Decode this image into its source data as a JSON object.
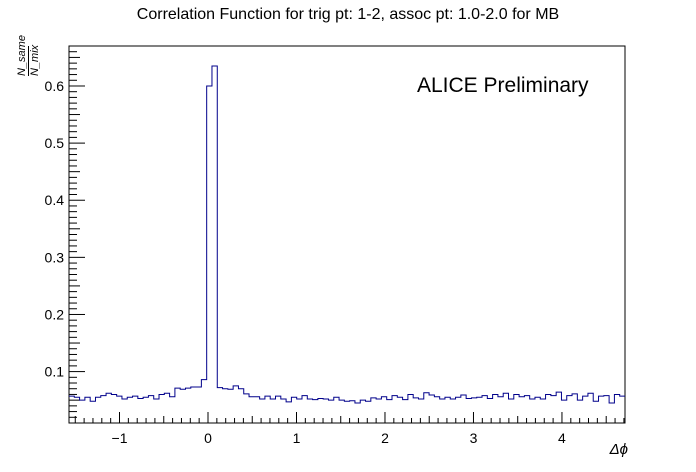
{
  "chart_data": {
    "type": "step-histogram",
    "title": "Correlation Function for trig pt: 1-2, assoc pt: 1.0-2.0 for MB",
    "annotation": "ALICE Preliminary",
    "xlabel": "Δϕ",
    "ylabel_numerator": "N_same",
    "ylabel_denominator": "N_mix",
    "xlim": [
      -1.5708,
      4.7124
    ],
    "ylim": [
      0.01,
      0.67
    ],
    "x_ticks": [
      -1,
      0,
      1,
      2,
      3,
      4
    ],
    "x_tick_labels": [
      "−1",
      "0",
      "1",
      "2",
      "3",
      "4"
    ],
    "y_ticks": [
      0.1,
      0.2,
      0.3,
      0.4,
      0.5,
      0.6
    ],
    "y_tick_labels": [
      "0.1",
      "0.2",
      "0.3",
      "0.4",
      "0.5",
      "0.6"
    ],
    "line_color": "#00008b",
    "series": [
      {
        "values": [
          0.057,
          0.055,
          0.05,
          0.055,
          0.048,
          0.055,
          0.058,
          0.062,
          0.06,
          0.057,
          0.052,
          0.055,
          0.057,
          0.053,
          0.055,
          0.058,
          0.052,
          0.06,
          0.062,
          0.056,
          0.071,
          0.069,
          0.071,
          0.073,
          0.073,
          0.086,
          0.6,
          0.635,
          0.072,
          0.07,
          0.069,
          0.075,
          0.07,
          0.061,
          0.056,
          0.056,
          0.052,
          0.057,
          0.052,
          0.057,
          0.052,
          0.047,
          0.055,
          0.052,
          0.058,
          0.052,
          0.051,
          0.053,
          0.052,
          0.05,
          0.055,
          0.05,
          0.048,
          0.049,
          0.045,
          0.05,
          0.048,
          0.054,
          0.052,
          0.056,
          0.051,
          0.058,
          0.055,
          0.051,
          0.06,
          0.054,
          0.052,
          0.063,
          0.059,
          0.056,
          0.052,
          0.055,
          0.052,
          0.055,
          0.059,
          0.053,
          0.054,
          0.055,
          0.058,
          0.053,
          0.06,
          0.056,
          0.062,
          0.052,
          0.06,
          0.056,
          0.058,
          0.052,
          0.055,
          0.052,
          0.06,
          0.058,
          0.064,
          0.05,
          0.058,
          0.061,
          0.05,
          0.057,
          0.062,
          0.048,
          0.057,
          0.058,
          0.045,
          0.06,
          0.057
        ]
      }
    ]
  }
}
